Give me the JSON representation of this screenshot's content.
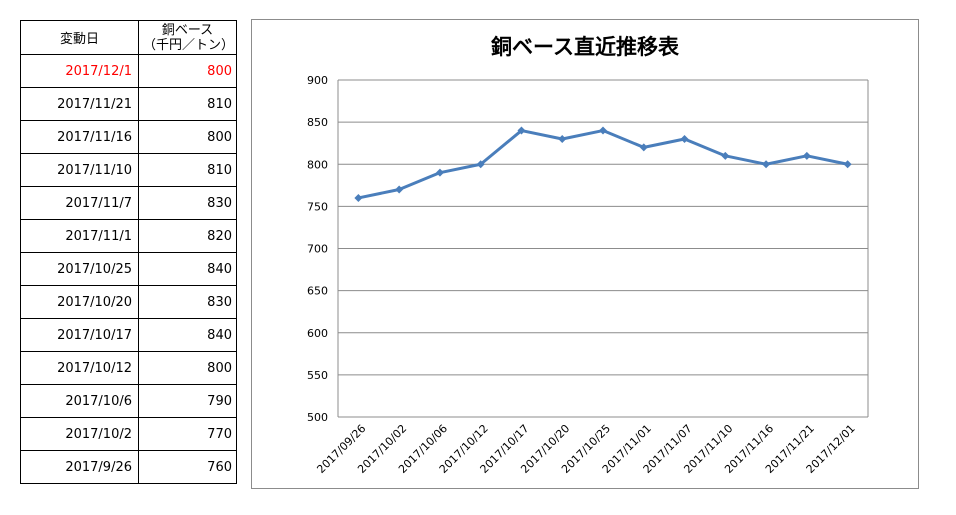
{
  "table": {
    "header_date": "変動日",
    "header_value_line1": "銅ベース",
    "header_value_line2": "（千円／トン）",
    "rows": [
      {
        "date": "2017/12/1",
        "value": "800"
      },
      {
        "date": "2017/11/21",
        "value": "810"
      },
      {
        "date": "2017/11/16",
        "value": "800"
      },
      {
        "date": "2017/11/10",
        "value": "810"
      },
      {
        "date": "2017/11/7",
        "value": "830"
      },
      {
        "date": "2017/11/1",
        "value": "820"
      },
      {
        "date": "2017/10/25",
        "value": "840"
      },
      {
        "date": "2017/10/20",
        "value": "830"
      },
      {
        "date": "2017/10/17",
        "value": "840"
      },
      {
        "date": "2017/10/12",
        "value": "800"
      },
      {
        "date": "2017/10/6",
        "value": "790"
      },
      {
        "date": "2017/10/2",
        "value": "770"
      },
      {
        "date": "2017/9/26",
        "value": "760"
      }
    ],
    "latest_color": "#ff0000"
  },
  "chart_data": {
    "type": "line",
    "title": "銅ベース直近推移表",
    "xlabel": "",
    "ylabel": "",
    "categories": [
      "2017/09/26",
      "2017/10/02",
      "2017/10/06",
      "2017/10/12",
      "2017/10/17",
      "2017/10/20",
      "2017/10/25",
      "2017/11/01",
      "2017/11/07",
      "2017/11/10",
      "2017/11/16",
      "2017/11/21",
      "2017/12/01"
    ],
    "series": [
      {
        "values": [
          760,
          770,
          790,
          800,
          840,
          830,
          840,
          820,
          830,
          810,
          800,
          810,
          800
        ],
        "color": "#4a7ebb",
        "marker": "diamond"
      }
    ],
    "ylim": [
      500,
      900
    ],
    "yticks": [
      500,
      550,
      600,
      650,
      700,
      750,
      800,
      850,
      900
    ],
    "grid": true,
    "legend": "none"
  }
}
